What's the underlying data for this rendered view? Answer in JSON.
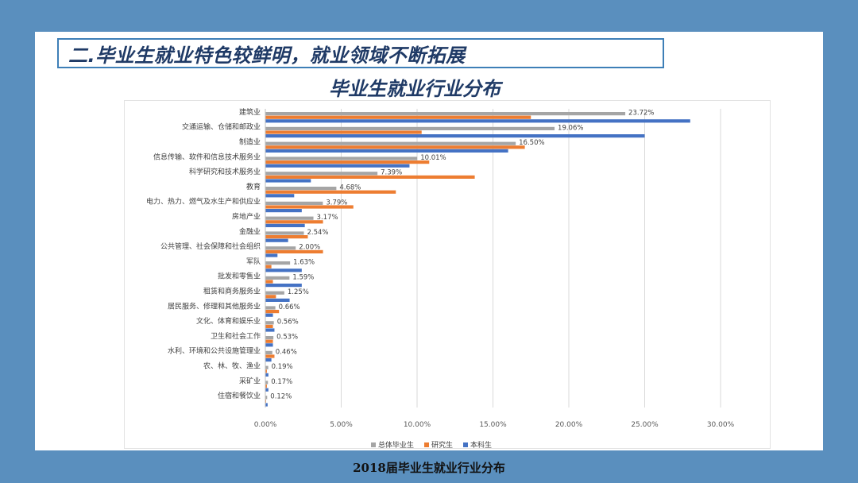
{
  "slide": {
    "heading": "二.毕业生就业特色较鲜明，就业领域不断拓展",
    "footer": "2018届毕业生就业行业分布"
  },
  "chart_data": {
    "type": "bar",
    "orientation": "horizontal",
    "title": "毕业生就业行业分布",
    "categories": [
      "建筑业",
      "交通运输、仓储和邮政业",
      "制造业",
      "信息传输、软件和信息技术服务业",
      "科学研究和技术服务业",
      "教育",
      "电力、热力、燃气及水生产和供应业",
      "房地产业",
      "金融业",
      "公共管理、社会保障和社会组织",
      "军队",
      "批发和零售业",
      "租赁和商务服务业",
      "居民服务、修理和其他服务业",
      "文化、体育和娱乐业",
      "卫生和社会工作",
      "水利、环境和公共设施管理业",
      "农、林、牧、渔业",
      "采矿业",
      "住宿和餐饮业"
    ],
    "series": [
      {
        "name": "总体毕业生",
        "color": "#a5a5a5",
        "values": [
          23.72,
          19.06,
          16.5,
          10.01,
          7.39,
          4.68,
          3.79,
          3.17,
          2.54,
          2.0,
          1.63,
          1.59,
          1.25,
          0.66,
          0.56,
          0.53,
          0.46,
          0.19,
          0.17,
          0.12
        ]
      },
      {
        "name": "研究生",
        "color": "#ed7d31",
        "values": [
          17.5,
          10.3,
          17.1,
          10.8,
          13.8,
          8.6,
          5.8,
          3.8,
          2.8,
          3.8,
          0.4,
          0.5,
          0.7,
          0.9,
          0.5,
          0.5,
          0.6,
          0.1,
          0.1,
          0.05
        ]
      },
      {
        "name": "本科生",
        "color": "#4472c4",
        "values": [
          28.0,
          25.0,
          16.0,
          9.5,
          3.0,
          1.9,
          2.4,
          2.6,
          1.5,
          0.8,
          2.4,
          2.4,
          1.6,
          0.5,
          0.6,
          0.5,
          0.4,
          0.2,
          0.2,
          0.15
        ]
      }
    ],
    "data_labels": [
      "23.72%",
      "19.06%",
      "16.50%",
      "10.01%",
      "7.39%",
      "4.68%",
      "3.79%",
      "3.17%",
      "2.54%",
      "2.00%",
      "1.63%",
      "1.59%",
      "1.25%",
      "0.66%",
      "0.56%",
      "0.53%",
      "0.46%",
      "0.19%",
      "0.17%",
      "0.12%"
    ],
    "xaxis": {
      "ticks": [
        0,
        5,
        10,
        15,
        20,
        25,
        30
      ],
      "tick_labels": [
        "0.00%",
        "5.00%",
        "10.00%",
        "15.00%",
        "20.00%",
        "25.00%",
        "30.00%"
      ],
      "range": [
        0,
        30
      ]
    },
    "grid": true,
    "legend": "bottom"
  }
}
